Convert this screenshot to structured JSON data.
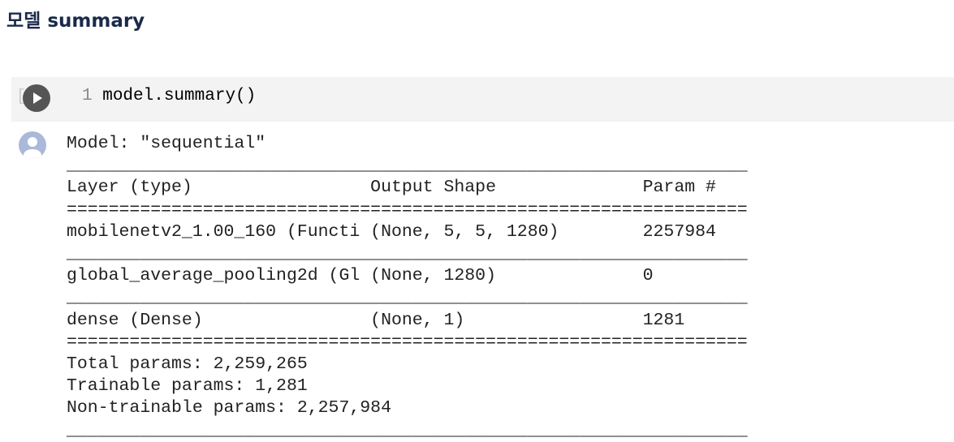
{
  "heading": "모델 summary",
  "code_cell": {
    "line_number": "1",
    "code": "model.summary()",
    "run_icon": "play-icon",
    "prompt_brackets": "[ ]"
  },
  "output": {
    "avatar_icon": "user-avatar-icon",
    "lines": [
      "Model: \"sequential\"",
      "_________________________________________________________________",
      "Layer (type)                 Output Shape              Param #   ",
      "=================================================================",
      "mobilenetv2_1.00_160 (Functi (None, 5, 5, 1280)        2257984   ",
      "_________________________________________________________________",
      "global_average_pooling2d (Gl (None, 1280)              0         ",
      "_________________________________________________________________",
      "dense (Dense)                (None, 1)                 1281      ",
      "=================================================================",
      "Total params: 2,259,265",
      "Trainable params: 1,281",
      "Non-trainable params: 2,257,984",
      "_________________________________________________________________"
    ]
  }
}
